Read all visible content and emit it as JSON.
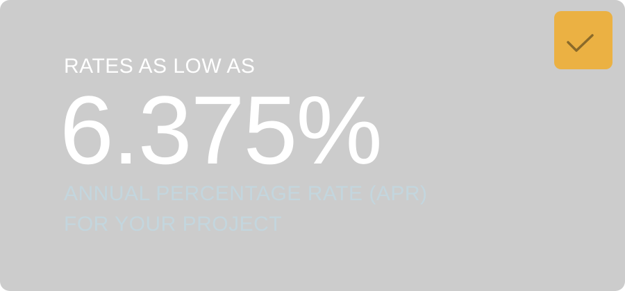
{
  "promo": {
    "kicker": "RATES AS LOW AS",
    "rate": "6.375%",
    "subtitle_line1": "ANNUAL PERCENTAGE RATE (APR)",
    "subtitle_line2": "FOR YOUR PROJECT"
  },
  "checkbox": {
    "icon": "check-icon",
    "checked": true,
    "color": "#ebb143"
  }
}
